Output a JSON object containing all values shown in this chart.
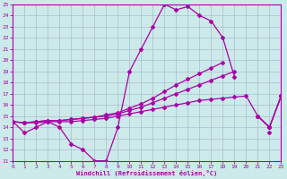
{
  "background_color": "#cceaea",
  "grid_color": "#aabbd0",
  "line_color": "#aa00aa",
  "marker": "D",
  "markersize": 2.0,
  "linewidth": 0.9,
  "xlabel": "Windchill (Refroidissement éolien,°C)",
  "ylim": [
    11,
    25
  ],
  "xlim": [
    0,
    23
  ],
  "yticks": [
    11,
    12,
    13,
    14,
    15,
    16,
    17,
    18,
    19,
    20,
    21,
    22,
    23,
    24,
    25
  ],
  "xticks": [
    0,
    1,
    2,
    3,
    4,
    5,
    6,
    7,
    8,
    9,
    10,
    11,
    12,
    13,
    14,
    15,
    16,
    17,
    18,
    19,
    20,
    21,
    22,
    23
  ],
  "line1_x": [
    0,
    1,
    2,
    3,
    4,
    5,
    6,
    7,
    8,
    9,
    10,
    11,
    12,
    13,
    14,
    15,
    16,
    17,
    18,
    19,
    20,
    21,
    22,
    23
  ],
  "line1_y": [
    14.5,
    13.5,
    14.0,
    14.5,
    14.0,
    12.5,
    12.0,
    11.0,
    11.0,
    14.0,
    19.0,
    21.0,
    23.0,
    25.0,
    24.5,
    24.8,
    24.0,
    23.5,
    22.0,
    18.5,
    null,
    null,
    13.5,
    null
  ],
  "line2_x": [
    0,
    1,
    2,
    3,
    4,
    5,
    6,
    7,
    8,
    9,
    10,
    11,
    12,
    13,
    14,
    15,
    16,
    17,
    18,
    19,
    20,
    21,
    22,
    23
  ],
  "line2_y": [
    14.5,
    14.4,
    14.4,
    14.5,
    14.5,
    14.5,
    14.6,
    14.7,
    14.8,
    15.0,
    15.2,
    15.4,
    15.6,
    15.8,
    16.0,
    16.2,
    16.4,
    16.5,
    16.6,
    16.7,
    16.8,
    15.0,
    14.0,
    16.8
  ],
  "line3_x": [
    0,
    1,
    2,
    3,
    4,
    5,
    6,
    7,
    8,
    9,
    10,
    11,
    12,
    13,
    14,
    15,
    16,
    17,
    18,
    19,
    20,
    21,
    22,
    23
  ],
  "line3_y": [
    14.5,
    14.4,
    14.5,
    14.6,
    14.6,
    14.7,
    14.8,
    14.9,
    15.0,
    15.2,
    15.5,
    15.8,
    16.2,
    16.6,
    17.0,
    17.4,
    17.8,
    18.2,
    18.6,
    19.0,
    null,
    15.0,
    14.0,
    16.8
  ],
  "line4_x": [
    0,
    1,
    2,
    3,
    4,
    5,
    6,
    7,
    8,
    9,
    10,
    11,
    12,
    13,
    14,
    15,
    16,
    17,
    18,
    19,
    20,
    21,
    22,
    23
  ],
  "line4_y": [
    14.5,
    14.4,
    14.5,
    14.6,
    14.6,
    14.7,
    14.8,
    14.9,
    15.1,
    15.3,
    15.7,
    16.1,
    16.6,
    17.2,
    17.8,
    18.3,
    18.8,
    19.3,
    19.8,
    null,
    null,
    15.0,
    14.0,
    16.8
  ]
}
